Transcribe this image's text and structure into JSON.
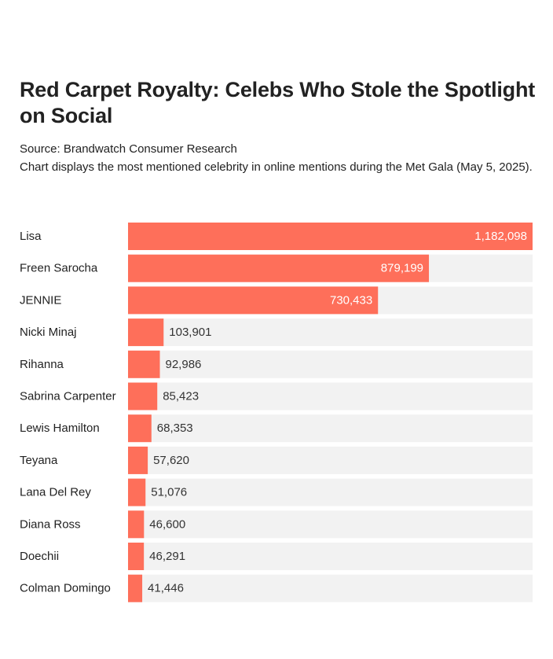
{
  "header": {
    "title": "Red Carpet Royalty: Celebs Who Stole the Spotlight on Social",
    "source": "Source: Brandwatch Consumer Research",
    "description": "Chart displays the most mentioned celebrity in online mentions during the Met Gala (May 5, 2025)."
  },
  "colors": {
    "bar": "#fe6f5a",
    "track": "#f2f2f2",
    "label": "#222222",
    "value_inside": "#ffffff",
    "value_outside": "#333333"
  },
  "chart_data": {
    "type": "bar",
    "orientation": "horizontal",
    "title": "Red Carpet Royalty: Celebs Who Stole the Spotlight on Social",
    "xlabel": "",
    "ylabel": "",
    "grid": false,
    "categories": [
      "Lisa",
      "Freen Sarocha",
      "JENNIE",
      "Nicki Minaj",
      "Rihanna",
      "Sabrina Carpenter",
      "Lewis Hamilton",
      "Teyana",
      "Lana Del Rey",
      "Diana Ross",
      "Doechii",
      "Colman Domingo"
    ],
    "values": [
      1182098,
      879199,
      730433,
      103901,
      92986,
      85423,
      68353,
      57620,
      51076,
      46600,
      46291,
      41446
    ],
    "value_labels": [
      "1,182,098",
      "879,199",
      "730,433",
      "103,901",
      "92,986",
      "85,423",
      "68,353",
      "57,620",
      "51,076",
      "46,600",
      "46,291",
      "41,446"
    ],
    "xlim": [
      0,
      1182098
    ]
  }
}
